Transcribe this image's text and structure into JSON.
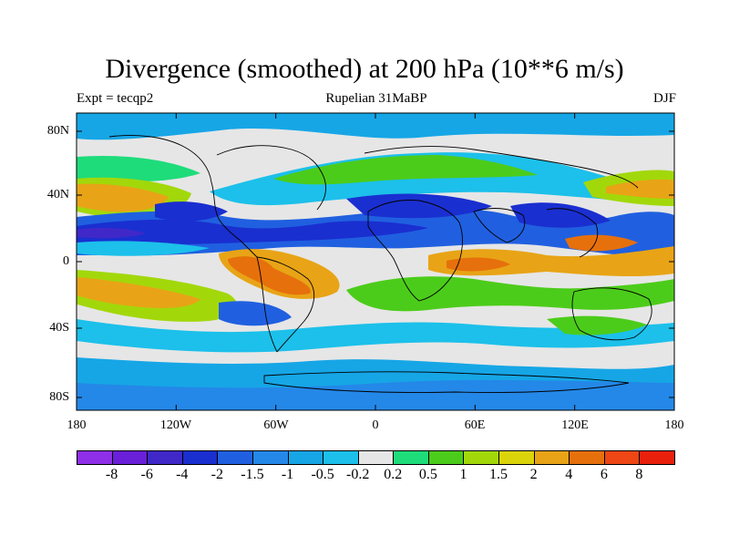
{
  "title": "Divergence (smoothed) at 200 hPa (10**6 m/s)",
  "experiment": "Expt = tecqp2",
  "period": "Rupelian  31MaBP",
  "season": "DJF",
  "y_axis_labels": [
    "80N",
    "40N",
    "0",
    "40S",
    "80S"
  ],
  "x_axis_labels": [
    "180",
    "120W",
    "60W",
    "0",
    "60E",
    "120E",
    "180"
  ],
  "colorbar": {
    "colors": [
      "#8f2fe8",
      "#6a1fd8",
      "#4028c8",
      "#1a2fd0",
      "#2060e0",
      "#2488e8",
      "#16a6e6",
      "#1cc0ea",
      "#e6e6e6",
      "#1edc7a",
      "#4ccc1a",
      "#a2d80a",
      "#dcd40a",
      "#e8a416",
      "#e6700c",
      "#ee4614",
      "#e8200c"
    ],
    "labels": [
      "-8",
      "-6",
      "-4",
      "-2",
      "-1.5",
      "-1",
      "-0.5",
      "-0.2",
      "0.2",
      "0.5",
      "1",
      "1.5",
      "2",
      "4",
      "6",
      "8"
    ]
  }
}
